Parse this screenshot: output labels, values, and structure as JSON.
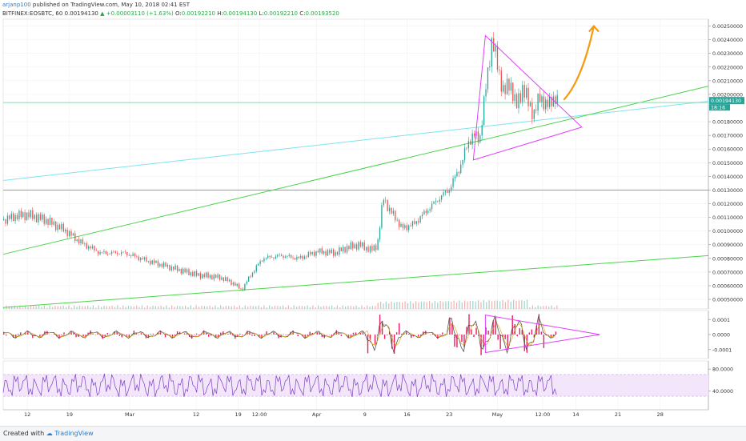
{
  "header": {
    "author": "arjanp100",
    "published": " published on TradingView.com, May 10, 2018 02:41 EST",
    "symbol": "BITFINEX:EOSBTC, 60",
    "last": "0.00194130",
    "change": "+0.00003110 (+1.63%)",
    "o_label": "O:",
    "o": "0.00192210",
    "h_label": "H:",
    "h": "0.00194130",
    "l_label": "L:",
    "l": "0.00192210",
    "c_label": "C:",
    "c": "0.00193520"
  },
  "footer": {
    "created": "Created with",
    "brand": "TradingView"
  },
  "colors": {
    "up": "#26a69a",
    "down": "#ef5350",
    "green_line": "#4cd44c",
    "cyan_line": "#7fe3ef",
    "magenta": "#e040fb",
    "orange": "#f39c12",
    "rsi": "#7b3fc4"
  },
  "chart_data": [
    {
      "type": "candlestick",
      "axis": {
        "ymin": 0.00043,
        "ymax": 0.00255
      },
      "y_ticks": [
        "0.00250000",
        "0.00240000",
        "0.00230000",
        "0.00220000",
        "0.00210000",
        "0.00200000",
        "0.00180000",
        "0.00170000",
        "0.00160000",
        "0.00150000",
        "0.00140000",
        "0.00130000",
        "0.00120000",
        "0.00110000",
        "0.00100000",
        "0.00090000",
        "0.00080000",
        "0.00070000",
        "0.00060000",
        "0.00050000"
      ],
      "y_tick_values": [
        0.0025,
        0.0024,
        0.0023,
        0.0022,
        0.0021,
        0.002,
        0.0018,
        0.0017,
        0.0016,
        0.0015,
        0.0014,
        0.0013,
        0.0012,
        0.0011,
        0.001,
        0.0009,
        0.0008,
        0.0007,
        0.0006,
        0.0005
      ],
      "price_tags": [
        "0.00194130",
        "18:16"
      ],
      "x_ticks": [
        "12",
        "19",
        "Mar",
        "12",
        "19",
        "12:00",
        "Apr",
        "9",
        "16",
        "23",
        "May",
        "12:00",
        "14",
        "21",
        "28"
      ],
      "x_tick_days": [
        12,
        19,
        29,
        40,
        47,
        50.5,
        60,
        68,
        75,
        82,
        90,
        97.5,
        103,
        110,
        117
      ],
      "x_range": [
        8,
        125
      ],
      "price_path": [
        [
          8,
          0.00108
        ],
        [
          10,
          0.00111
        ],
        [
          12,
          0.00112
        ],
        [
          15,
          0.00108
        ],
        [
          18,
          0.00101
        ],
        [
          21,
          0.00091
        ],
        [
          24,
          0.00084
        ],
        [
          28,
          0.00084
        ],
        [
          32,
          0.00078
        ],
        [
          36,
          0.00073
        ],
        [
          40,
          0.00068
        ],
        [
          44,
          0.00066
        ],
        [
          46,
          0.00062
        ],
        [
          47.5,
          0.00057
        ],
        [
          49,
          0.00068
        ],
        [
          51,
          0.0008
        ],
        [
          54,
          0.00082
        ],
        [
          57,
          0.0008
        ],
        [
          60,
          0.00085
        ],
        [
          63,
          0.00084
        ],
        [
          65,
          0.00088
        ],
        [
          67,
          0.0009
        ],
        [
          69,
          0.00086
        ],
        [
          70,
          0.0009
        ],
        [
          71,
          0.00125
        ],
        [
          72,
          0.00115
        ],
        [
          73,
          0.0011
        ],
        [
          74,
          0.00102
        ],
        [
          76,
          0.00105
        ],
        [
          78,
          0.00114
        ],
        [
          80,
          0.00123
        ],
        [
          82,
          0.00131
        ],
        [
          84,
          0.0015
        ],
        [
          85,
          0.00165
        ],
        [
          86,
          0.0017
        ],
        [
          87,
          0.00168
        ],
        [
          88,
          0.00205
        ],
        [
          89,
          0.0024
        ],
        [
          90,
          0.0022
        ],
        [
          91,
          0.002
        ],
        [
          92,
          0.0021
        ],
        [
          93,
          0.0019
        ],
        [
          94,
          0.00205
        ],
        [
          96,
          0.00185
        ],
        [
          97,
          0.002
        ],
        [
          98,
          0.0019
        ],
        [
          99,
          0.00198
        ],
        [
          100,
          0.00193
        ]
      ],
      "lines": [
        {
          "name": "",
          "color": "#7fe3ef",
          "from": [
            8,
            0.00137
          ],
          "to": [
            125,
            0.00195
          ]
        },
        {
          "name": "",
          "color": "#4cd44c",
          "from": [
            8,
            0.00083
          ],
          "to": [
            125,
            0.00206
          ]
        },
        {
          "name": "",
          "color": "#4cd44c",
          "from": [
            8,
            0.00044
          ],
          "to": [
            125,
            0.00082
          ]
        },
        {
          "name": "",
          "color": "#4cd44c",
          "from": [
            8,
            0.0013
          ],
          "to": [
            125,
            0.0013
          ]
        },
        {
          "name": "",
          "color": "#8fd8b0",
          "from": [
            8,
            0.00194
          ],
          "to": [
            125,
            0.00194
          ]
        }
      ],
      "triangle": [
        [
          88,
          0.00243
        ],
        [
          104,
          0.00176
        ],
        [
          86,
          0.00152
        ]
      ],
      "projection_arrow": [
        [
          101,
          0.00196
        ],
        [
          104,
          0.0021
        ],
        [
          105.5,
          0.0024
        ],
        [
          106,
          0.0025
        ]
      ]
    },
    {
      "type": "line",
      "y_ticks": [
        "0.0001",
        "0.0000",
        "-0.0001"
      ],
      "y_tick_values": [
        0.0001,
        0,
        -0.0001
      ],
      "axis": {
        "ymin": -0.00016,
        "ymax": 0.00016
      },
      "triangle": [
        [
          88,
          0.00013
        ],
        [
          107,
          0.0
        ],
        [
          88,
          -0.00012
        ]
      ]
    },
    {
      "type": "line",
      "y_ticks": [
        "80.0000",
        "40.0000"
      ],
      "y_tick_values": [
        80,
        40
      ],
      "band": [
        30,
        70
      ],
      "axis": {
        "ymin": 5,
        "ymax": 95
      }
    }
  ]
}
